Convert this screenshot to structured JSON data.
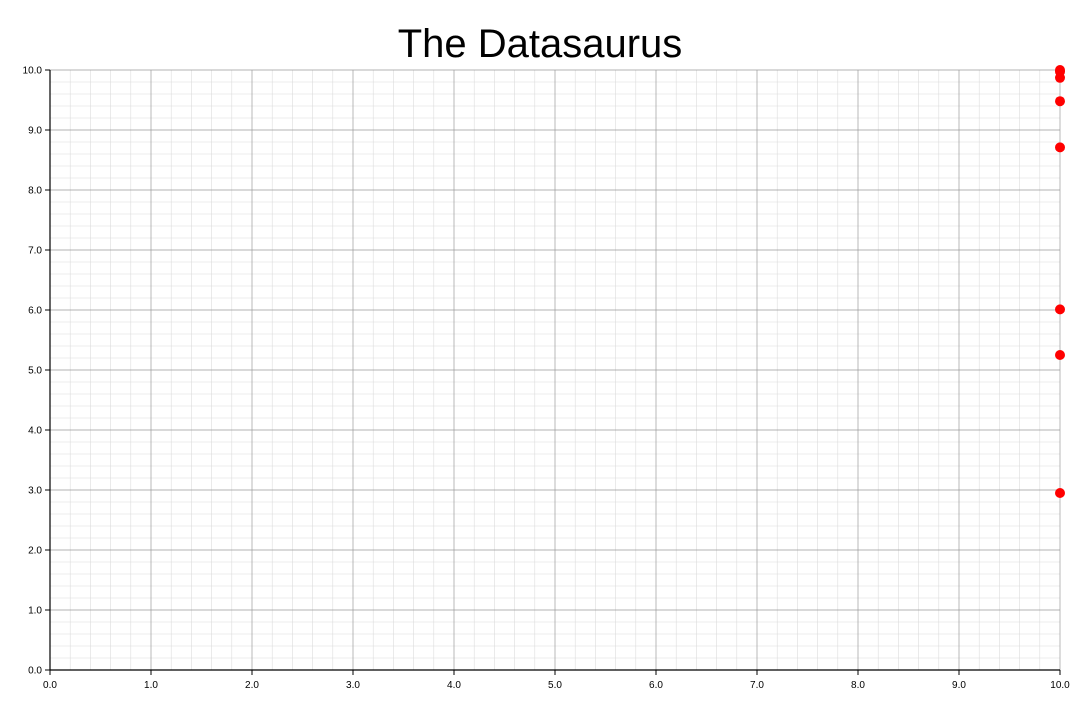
{
  "chart_data": {
    "type": "scatter",
    "title": "The Datasaurus",
    "xlabel": "",
    "ylabel": "",
    "xlim": [
      0,
      10
    ],
    "ylim": [
      0,
      10
    ],
    "x_ticks": [
      "0.0",
      "1.0",
      "2.0",
      "3.0",
      "4.0",
      "5.0",
      "6.0",
      "7.0",
      "8.0",
      "9.0",
      "10.0"
    ],
    "y_ticks": [
      "0.0",
      "1.0",
      "2.0",
      "3.0",
      "4.0",
      "5.0",
      "6.0",
      "7.0",
      "8.0",
      "9.0",
      "10.0"
    ],
    "grid": true,
    "minor_grid": true,
    "point_color": "#ff0000",
    "series": [
      {
        "points": [
          {
            "x": 10.0,
            "y": 10.0
          },
          {
            "x": 10.0,
            "y": 9.97
          },
          {
            "x": 10.0,
            "y": 9.87
          },
          {
            "x": 10.0,
            "y": 9.48
          },
          {
            "x": 10.0,
            "y": 8.71
          },
          {
            "x": 10.0,
            "y": 6.01
          },
          {
            "x": 10.0,
            "y": 5.25
          },
          {
            "x": 10.0,
            "y": 2.95
          }
        ]
      }
    ]
  }
}
